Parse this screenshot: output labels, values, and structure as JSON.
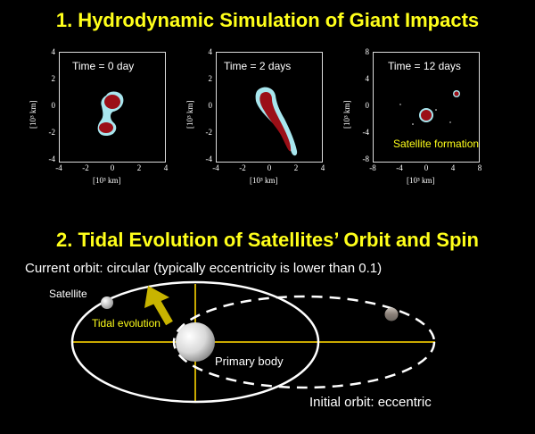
{
  "section1": {
    "title": "1. Hydrodynamic Simulation of Giant Impacts"
  },
  "panels": [
    {
      "time": "Time = 0 day",
      "yticks": [
        "4",
        "2",
        "0",
        "-2",
        "-4"
      ],
      "xticks": [
        "-4",
        "-2",
        "0",
        "2",
        "4"
      ],
      "xlabel": "[10³ km]",
      "ylabel": "[10³ km]"
    },
    {
      "time": "Time = 2 days",
      "yticks": [
        "4",
        "2",
        "0",
        "-2",
        "-4"
      ],
      "xticks": [
        "-4",
        "-2",
        "0",
        "2",
        "4"
      ],
      "xlabel": "[10³ km]",
      "ylabel": "[10³ km]"
    },
    {
      "time": "Time = 12 days",
      "yticks": [
        "8",
        "4",
        "0",
        "-4",
        "-8"
      ],
      "xticks": [
        "-8",
        "-4",
        "0",
        "4",
        "8"
      ],
      "xlabel": "[10³ km]",
      "ylabel": "[10³ km]",
      "annotation": "Satellite formation"
    }
  ],
  "section2": {
    "title": "2. Tidal Evolution of Satellites’ Orbit and Spin",
    "current_orbit": "Current orbit: circular (typically eccentricity is lower than 0.1)",
    "satellite_label": "Satellite",
    "tidal_label": "Tidal evolution",
    "primary_label": "Primary body",
    "initial_orbit": "Initial orbit: eccentric"
  },
  "colors": {
    "title": "#ffff1a",
    "core": "#9b0f17",
    "mantle": "#a8e6ee",
    "axis_lines": "#c8a800",
    "arrow": "#c8b400"
  }
}
